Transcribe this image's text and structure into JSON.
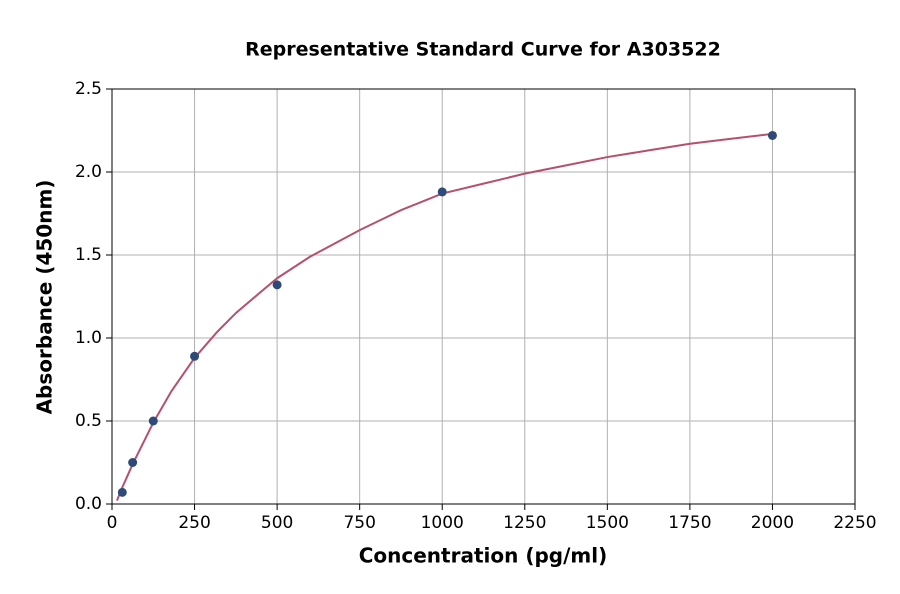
{
  "chart_data": {
    "type": "scatter",
    "title": "Representative Standard Curve for A303522",
    "x_label": "Concentration (pg/ml)",
    "y_label": "Absorbance (450nm)",
    "xlim": [
      0,
      2250
    ],
    "ylim": [
      0,
      2.5
    ],
    "xticks": [
      0,
      250,
      500,
      750,
      1000,
      1250,
      1500,
      1750,
      2000,
      2250
    ],
    "yticks": [
      {
        "value": 0,
        "label": "0.0"
      },
      0.5,
      {
        "value": 1,
        "label": "1.0"
      },
      1.5,
      {
        "value": 2,
        "label": "2.0"
      },
      2.5
    ],
    "grid": true,
    "series": [
      {
        "type": "scatter",
        "color": "#2d4a78",
        "x": [
          31.25,
          62.5,
          125,
          250,
          500,
          1000,
          2000
        ],
        "values": [
          0.07,
          0.25,
          0.5,
          0.89,
          1.32,
          1.88,
          2.22
        ]
      },
      {
        "type": "line",
        "color": "#b5506e",
        "x": [
          15,
          31.25,
          62.5,
          95,
          125,
          180,
          250,
          320,
          375,
          440,
          500,
          600,
          750,
          875,
          1000,
          1125,
          1250,
          1375,
          1500,
          1625,
          1750,
          1875,
          2000
        ],
        "values": [
          0.02,
          0.1,
          0.24,
          0.37,
          0.49,
          0.68,
          0.88,
          1.04,
          1.15,
          1.26,
          1.36,
          1.49,
          1.65,
          1.77,
          1.87,
          1.93,
          1.99,
          2.04,
          2.09,
          2.13,
          2.17,
          2.2,
          2.23
        ]
      }
    ]
  }
}
